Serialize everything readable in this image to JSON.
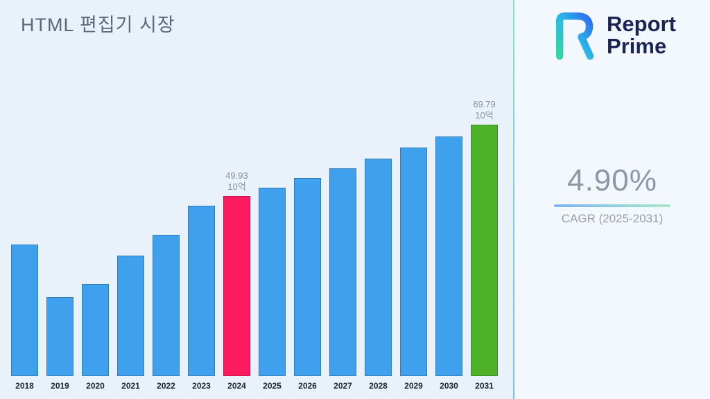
{
  "title": "HTML 편집기 시장",
  "brand": {
    "line1": "Report",
    "line2": "Prime"
  },
  "cagr": {
    "value": "4.90%",
    "label": "CAGR (2025-2031)"
  },
  "chart_data": {
    "type": "bar",
    "title": "HTML 편집기 시장",
    "xlabel": "",
    "ylabel": "",
    "unit": "10억",
    "ylim": [
      0,
      75
    ],
    "grid": false,
    "legend": false,
    "categories": [
      "2018",
      "2019",
      "2020",
      "2021",
      "2022",
      "2023",
      "2024",
      "2025",
      "2026",
      "2027",
      "2028",
      "2029",
      "2030",
      "2031"
    ],
    "values": [
      36.5,
      22.0,
      25.6,
      33.5,
      39.2,
      47.4,
      49.93,
      52.38,
      54.94,
      57.64,
      60.46,
      63.42,
      66.53,
      69.79
    ],
    "bar_colors": {
      "default": "#3fa0ee",
      "2024": "#fb1b5e",
      "2031": "#4eb229"
    },
    "annotations": [
      {
        "category": "2024",
        "lines": [
          "49.93",
          "10억"
        ]
      },
      {
        "category": "2031",
        "lines": [
          "69.79",
          "10억"
        ]
      }
    ]
  }
}
